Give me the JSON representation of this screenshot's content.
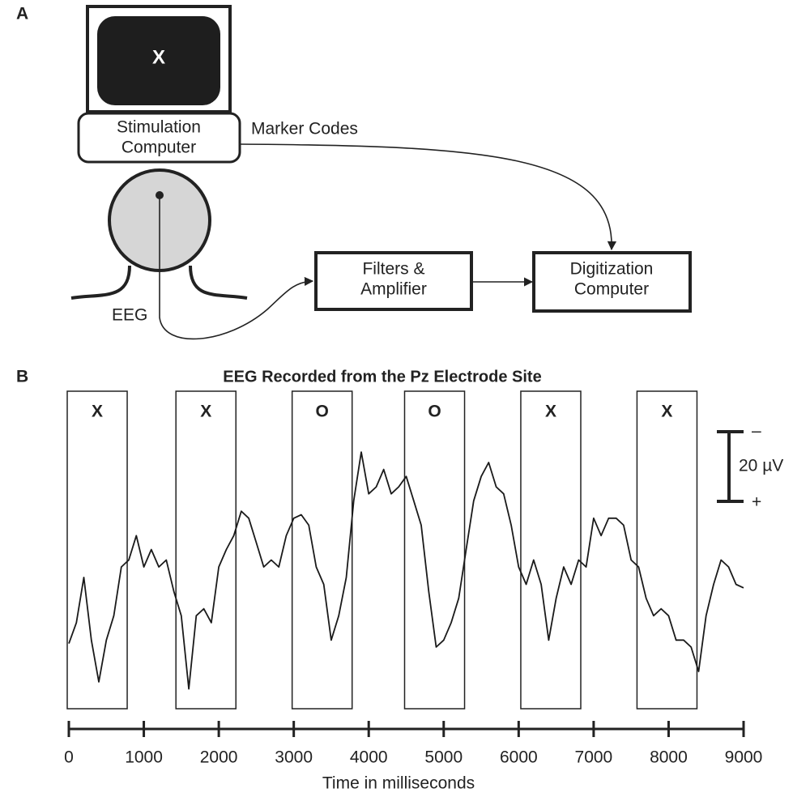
{
  "panel_a": {
    "label": "A",
    "monitor_symbol": "X",
    "stimulation_computer": [
      "Stimulation",
      "Computer"
    ],
    "marker_codes": "Marker Codes",
    "eeg": "EEG",
    "filters_amplifier": [
      "Filters &",
      "Amplifier"
    ],
    "digitization_computer": [
      "Digitization",
      "Computer"
    ]
  },
  "chart_data": {
    "type": "line",
    "panel_label": "B",
    "title": "EEG Recorded from the Pz Electrode Site",
    "xlabel": "Time in milliseconds",
    "x": [
      0,
      100,
      200,
      300,
      400,
      500,
      600,
      700,
      800,
      900,
      1000,
      1100,
      1200,
      1300,
      1400,
      1500,
      1600,
      1700,
      1800,
      1900,
      2000,
      2100,
      2200,
      2300,
      2400,
      2500,
      2600,
      2700,
      2800,
      2900,
      3000,
      3100,
      3200,
      3300,
      3400,
      3500,
      3600,
      3700,
      3800,
      3900,
      4000,
      4100,
      4200,
      4300,
      4400,
      4500,
      4600,
      4700,
      4800,
      4900,
      5000,
      5100,
      5200,
      5300,
      5400,
      5500,
      5600,
      5700,
      5800,
      5900,
      6000,
      6100,
      6200,
      6300,
      6400,
      6500,
      6600,
      6700,
      6800,
      6900,
      7000,
      7100,
      7200,
      7300,
      7400,
      7500,
      7600,
      7700,
      7800,
      7900,
      8000,
      8100,
      8200,
      8300,
      8400,
      8500,
      8600,
      8700,
      8800,
      8900,
      9000
    ],
    "series": [
      {
        "color": "#1a1a1a",
        "values": [
          32,
          26,
          13,
          31,
          43,
          31,
          24,
          10,
          8,
          1,
          10,
          5,
          10,
          8,
          17,
          24,
          45,
          24,
          22,
          26,
          10,
          5,
          1,
          -6,
          -4,
          3,
          10,
          8,
          10,
          1,
          -4,
          -5,
          -2,
          10,
          15,
          31,
          24,
          13,
          -9,
          -23,
          -11,
          -13,
          -18,
          -11,
          -13,
          -16,
          -9,
          -2,
          17,
          33,
          31,
          26,
          19,
          5,
          -9,
          -16,
          -20,
          -13,
          -11,
          -2,
          10,
          15,
          8,
          15,
          31,
          19,
          10,
          15,
          8,
          10,
          -4,
          1,
          -4,
          -4,
          -2,
          8,
          10,
          19,
          24,
          22,
          24,
          31,
          31,
          33,
          40,
          24,
          15,
          8,
          10,
          15,
          16
        ]
      }
    ],
    "xlim": [
      0,
      9000
    ],
    "xticks": [
      0,
      1000,
      2000,
      3000,
      4000,
      5000,
      6000,
      7000,
      8000,
      9000
    ],
    "ylim": [
      -40,
      50
    ],
    "y_reversed": true,
    "stimuli": [
      {
        "label": "X",
        "start": 0,
        "end": 800
      },
      {
        "label": "X",
        "start": 1450,
        "end": 2250
      },
      {
        "label": "O",
        "start": 3000,
        "end": 3800
      },
      {
        "label": "O",
        "start": 4500,
        "end": 5300
      },
      {
        "label": "X",
        "start": 6050,
        "end": 6850
      },
      {
        "label": "X",
        "start": 7600,
        "end": 8400
      }
    ],
    "scale_bar": {
      "value": 20,
      "label": "20 µV",
      "top": "–",
      "bottom": "+"
    }
  }
}
